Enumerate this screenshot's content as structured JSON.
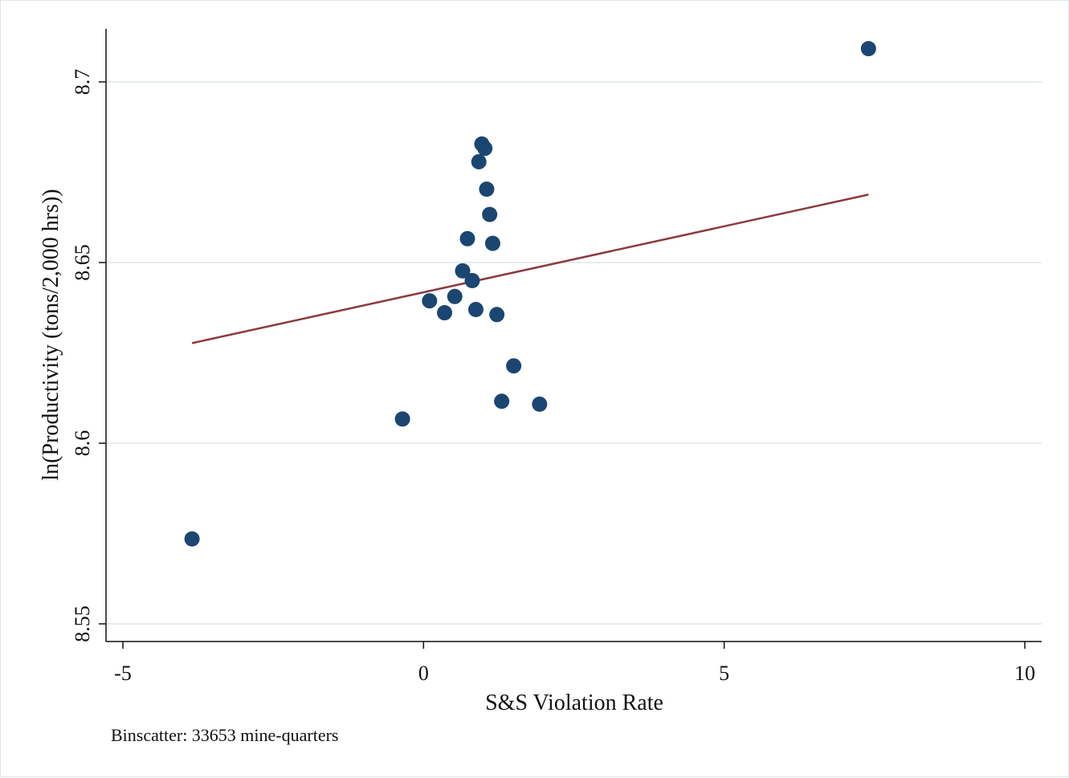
{
  "chart_data": {
    "type": "scatter",
    "xlabel": "S&S Violation Rate",
    "ylabel": "ln(Productivity (tons/2,000 hrs))",
    "note": "Binscatter: 33653 mine-quarters",
    "xlim": [
      -5,
      10
    ],
    "ylim": [
      8.55,
      8.71
    ],
    "xticks": [
      -5,
      0,
      5,
      10
    ],
    "yticks": [
      8.55,
      8.6,
      8.65,
      8.7
    ],
    "xtick_labels": [
      "-5",
      "0",
      "5",
      "10"
    ],
    "ytick_labels": [
      "8.55",
      "8.6",
      "8.65",
      "8.7"
    ],
    "grid": "horizontal",
    "marker_color": "#1a4671",
    "line_color": "#8b3a3f",
    "points": [
      {
        "x": -3.85,
        "y": 8.5735
      },
      {
        "x": -0.35,
        "y": 8.6067
      },
      {
        "x": 0.1,
        "y": 8.6394
      },
      {
        "x": 0.35,
        "y": 8.6361
      },
      {
        "x": 0.52,
        "y": 8.6406
      },
      {
        "x": 0.65,
        "y": 8.6477
      },
      {
        "x": 0.73,
        "y": 8.6566
      },
      {
        "x": 0.81,
        "y": 8.645
      },
      {
        "x": 0.87,
        "y": 8.637
      },
      {
        "x": 0.92,
        "y": 8.6779
      },
      {
        "x": 0.97,
        "y": 8.6828
      },
      {
        "x": 1.02,
        "y": 8.6816
      },
      {
        "x": 1.05,
        "y": 8.6703
      },
      {
        "x": 1.1,
        "y": 8.6633
      },
      {
        "x": 1.15,
        "y": 8.6553
      },
      {
        "x": 1.22,
        "y": 8.6356
      },
      {
        "x": 1.3,
        "y": 8.6116
      },
      {
        "x": 1.5,
        "y": 8.6214
      },
      {
        "x": 1.93,
        "y": 8.6108
      },
      {
        "x": 7.4,
        "y": 8.7092
      }
    ],
    "fit_line": {
      "x": [
        -3.85,
        7.4
      ],
      "y": [
        8.6277,
        8.6688
      ]
    }
  }
}
